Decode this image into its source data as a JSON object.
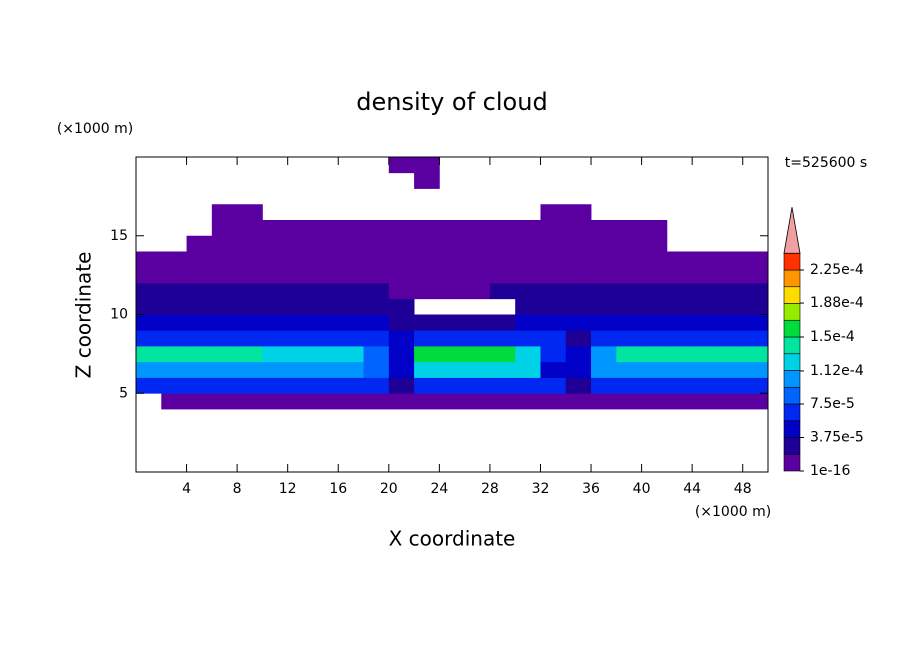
{
  "chart_data": {
    "type": "contour",
    "title": "density of cloud",
    "x_label": "X coordinate",
    "y_label": "Z coordinate",
    "x_unit": "(×1000 m)",
    "y_unit": "(×1000 m)",
    "annotation": "t=525600 s",
    "xlim": [
      0,
      50
    ],
    "ylim": [
      0,
      20
    ],
    "xticks": [
      4,
      8,
      12,
      16,
      20,
      24,
      28,
      32,
      36,
      40,
      44,
      48
    ],
    "yticks": [
      5,
      10,
      15
    ],
    "x": [
      1,
      3,
      5,
      7,
      9,
      11,
      13,
      15,
      17,
      19,
      21,
      23,
      25,
      27,
      29,
      31,
      33,
      35,
      37,
      39,
      41,
      43,
      45,
      47,
      49
    ],
    "y": [
      0.5,
      1.5,
      2.5,
      3.5,
      4.5,
      5.5,
      6.5,
      7.5,
      8.5,
      9.5,
      10.5,
      11.5,
      12.5,
      13.5,
      14.5,
      15.5,
      16.5,
      17.5,
      18.5,
      19.5
    ],
    "z": [
      [
        null,
        null,
        null,
        null,
        null,
        null,
        null,
        null,
        null,
        null,
        null,
        null,
        null,
        null,
        null,
        null,
        null,
        null,
        null,
        null,
        null,
        null,
        null,
        null,
        null
      ],
      [
        null,
        null,
        null,
        null,
        null,
        null,
        null,
        null,
        null,
        null,
        null,
        null,
        null,
        null,
        null,
        null,
        null,
        null,
        null,
        null,
        null,
        null,
        null,
        null,
        null
      ],
      [
        null,
        null,
        null,
        null,
        null,
        null,
        null,
        null,
        null,
        null,
        null,
        null,
        null,
        null,
        null,
        null,
        null,
        null,
        null,
        null,
        null,
        null,
        null,
        null,
        null
      ],
      [
        null,
        null,
        null,
        null,
        null,
        null,
        null,
        null,
        null,
        null,
        null,
        null,
        null,
        null,
        null,
        null,
        null,
        null,
        null,
        null,
        null,
        null,
        null,
        null,
        null
      ],
      [
        null,
        1e-05,
        1e-05,
        1e-05,
        1e-05,
        1e-05,
        1e-05,
        1e-05,
        1e-05,
        1e-05,
        1e-05,
        1e-05,
        1e-05,
        1e-05,
        1e-05,
        1e-05,
        1e-05,
        1e-05,
        1e-05,
        1e-05,
        1e-05,
        1e-05,
        1e-05,
        1e-05,
        1e-05
      ],
      [
        6e-05,
        6e-05,
        6e-05,
        6e-05,
        6e-05,
        6e-05,
        6e-05,
        6e-05,
        6e-05,
        6e-05,
        3e-05,
        6e-05,
        6e-05,
        6e-05,
        6e-05,
        6e-05,
        6e-05,
        3e-05,
        6e-05,
        6e-05,
        6e-05,
        6e-05,
        6e-05,
        6e-05,
        6e-05
      ],
      [
        0.000105,
        0.000105,
        0.000105,
        0.000105,
        0.000105,
        0.000105,
        0.000105,
        0.000105,
        0.000105,
        8e-05,
        4e-05,
        0.000115,
        0.000115,
        0.000115,
        0.000115,
        0.000115,
        5e-05,
        4e-05,
        0.000105,
        0.000105,
        0.000105,
        0.000105,
        0.000105,
        0.000105,
        0.000105
      ],
      [
        0.000135,
        0.000135,
        0.000135,
        0.000135,
        0.000135,
        0.00012,
        0.00012,
        0.00012,
        0.00012,
        8e-05,
        4e-05,
        0.00016,
        0.00016,
        0.00016,
        0.00016,
        0.00013,
        6e-05,
        4e-05,
        0.0001,
        0.000135,
        0.000135,
        0.000135,
        0.000135,
        0.000135,
        0.000135
      ],
      [
        7e-05,
        7e-05,
        7e-05,
        7e-05,
        7e-05,
        7e-05,
        7e-05,
        7e-05,
        7e-05,
        6e-05,
        4e-05,
        6e-05,
        6e-05,
        6e-05,
        6e-05,
        6e-05,
        6e-05,
        3e-05,
        6e-05,
        6e-05,
        6e-05,
        6e-05,
        6e-05,
        6e-05,
        6e-05
      ],
      [
        4.5e-05,
        4.5e-05,
        4.5e-05,
        4.5e-05,
        4.5e-05,
        4.5e-05,
        4.5e-05,
        4.5e-05,
        4.5e-05,
        4.5e-05,
        3e-05,
        3e-05,
        3e-05,
        3e-05,
        3e-05,
        4.5e-05,
        4.5e-05,
        4.5e-05,
        4.5e-05,
        4.5e-05,
        4.5e-05,
        4.5e-05,
        4.5e-05,
        4.5e-05,
        4.5e-05
      ],
      [
        3e-05,
        3e-05,
        3e-05,
        3e-05,
        3e-05,
        3e-05,
        3e-05,
        3e-05,
        3e-05,
        3e-05,
        2e-05,
        null,
        null,
        null,
        null,
        3e-05,
        3e-05,
        3e-05,
        3e-05,
        3e-05,
        3e-05,
        3e-05,
        3e-05,
        3e-05,
        3e-05
      ],
      [
        2.5e-05,
        2.5e-05,
        2.5e-05,
        2.5e-05,
        2.5e-05,
        2.5e-05,
        2.5e-05,
        2.5e-05,
        2.5e-05,
        2.5e-05,
        1.2e-05,
        1.2e-05,
        1.2e-05,
        1.2e-05,
        2.5e-05,
        2.5e-05,
        2.5e-05,
        2.5e-05,
        2.5e-05,
        2.5e-05,
        2.5e-05,
        2.5e-05,
        2.5e-05,
        2.5e-05,
        2.5e-05
      ],
      [
        1.2e-05,
        1.2e-05,
        1.2e-05,
        1.2e-05,
        1.2e-05,
        1.2e-05,
        1.2e-05,
        1.2e-05,
        1.2e-05,
        1.2e-05,
        1.2e-05,
        1.2e-05,
        1.2e-05,
        1.2e-05,
        1.2e-05,
        1.2e-05,
        1.2e-05,
        1.2e-05,
        1.2e-05,
        1.2e-05,
        1.2e-05,
        1.2e-05,
        1.2e-05,
        1.2e-05,
        1.2e-05
      ],
      [
        1e-05,
        1e-05,
        1e-05,
        1e-05,
        1e-05,
        1e-05,
        1e-05,
        1e-05,
        1e-05,
        1e-05,
        1e-05,
        1e-05,
        1e-05,
        1e-05,
        1e-05,
        1e-05,
        1e-05,
        1e-05,
        1e-05,
        1e-05,
        1e-05,
        1e-05,
        1e-05,
        1e-05,
        1e-05
      ],
      [
        null,
        null,
        5e-06,
        5e-06,
        5e-06,
        5e-06,
        5e-06,
        5e-06,
        5e-06,
        5e-06,
        5e-06,
        5e-06,
        5e-06,
        5e-06,
        5e-06,
        5e-06,
        5e-06,
        5e-06,
        5e-06,
        5e-06,
        5e-06,
        null,
        null,
        null,
        null
      ],
      [
        null,
        null,
        null,
        5e-06,
        5e-06,
        5e-06,
        5e-06,
        5e-06,
        5e-06,
        5e-06,
        5e-06,
        5e-06,
        5e-06,
        5e-06,
        5e-06,
        5e-06,
        5e-06,
        5e-06,
        5e-06,
        5e-06,
        5e-06,
        null,
        null,
        null,
        null
      ],
      [
        null,
        null,
        null,
        5e-06,
        5e-06,
        null,
        null,
        null,
        null,
        null,
        null,
        null,
        null,
        null,
        null,
        null,
        5e-06,
        5e-06,
        null,
        null,
        null,
        null,
        null,
        null,
        null
      ],
      [
        null,
        null,
        null,
        null,
        null,
        null,
        null,
        null,
        null,
        null,
        null,
        null,
        null,
        null,
        null,
        null,
        null,
        null,
        null,
        null,
        null,
        null,
        null,
        null,
        null
      ],
      [
        null,
        null,
        null,
        null,
        null,
        null,
        null,
        null,
        null,
        null,
        null,
        5e-06,
        null,
        null,
        null,
        null,
        null,
        null,
        null,
        null,
        null,
        null,
        null,
        null,
        null
      ],
      [
        null,
        null,
        null,
        null,
        null,
        null,
        null,
        null,
        null,
        null,
        5e-06,
        5e-06,
        null,
        null,
        null,
        null,
        null,
        null,
        null,
        null,
        null,
        null,
        null,
        null,
        null
      ]
    ],
    "levels": [
      1e-16,
      1.875e-05,
      3.75e-05,
      5.625e-05,
      7.5e-05,
      9.375e-05,
      0.0001125,
      0.00013125,
      0.00015,
      0.00016875,
      0.0001875,
      0.00020625,
      0.000225,
      0.00024375
    ],
    "colors": [
      "#5a00a0",
      "#1e0096",
      "#0000c8",
      "#0028f0",
      "#0064ff",
      "#0096ff",
      "#00d2e6",
      "#00e6a0",
      "#00dc3c",
      "#96ec00",
      "#ffdc00",
      "#ff9600",
      "#ff3200"
    ],
    "extend_color": "#f0a0a0",
    "colorbar_ticks": [
      1e-16,
      {
        "value": 3.75e-05,
        "label": "3.75e-5"
      },
      {
        "value": 7.5e-05,
        "label": "7.5e-5"
      },
      {
        "value": 0.000112,
        "label": "1.12e-4"
      },
      {
        "value": 0.00015,
        "label": "1.5e-4"
      },
      {
        "value": 0.000188,
        "label": "1.88e-4"
      },
      {
        "value": 0.000225,
        "label": "2.25e-4"
      }
    ]
  }
}
